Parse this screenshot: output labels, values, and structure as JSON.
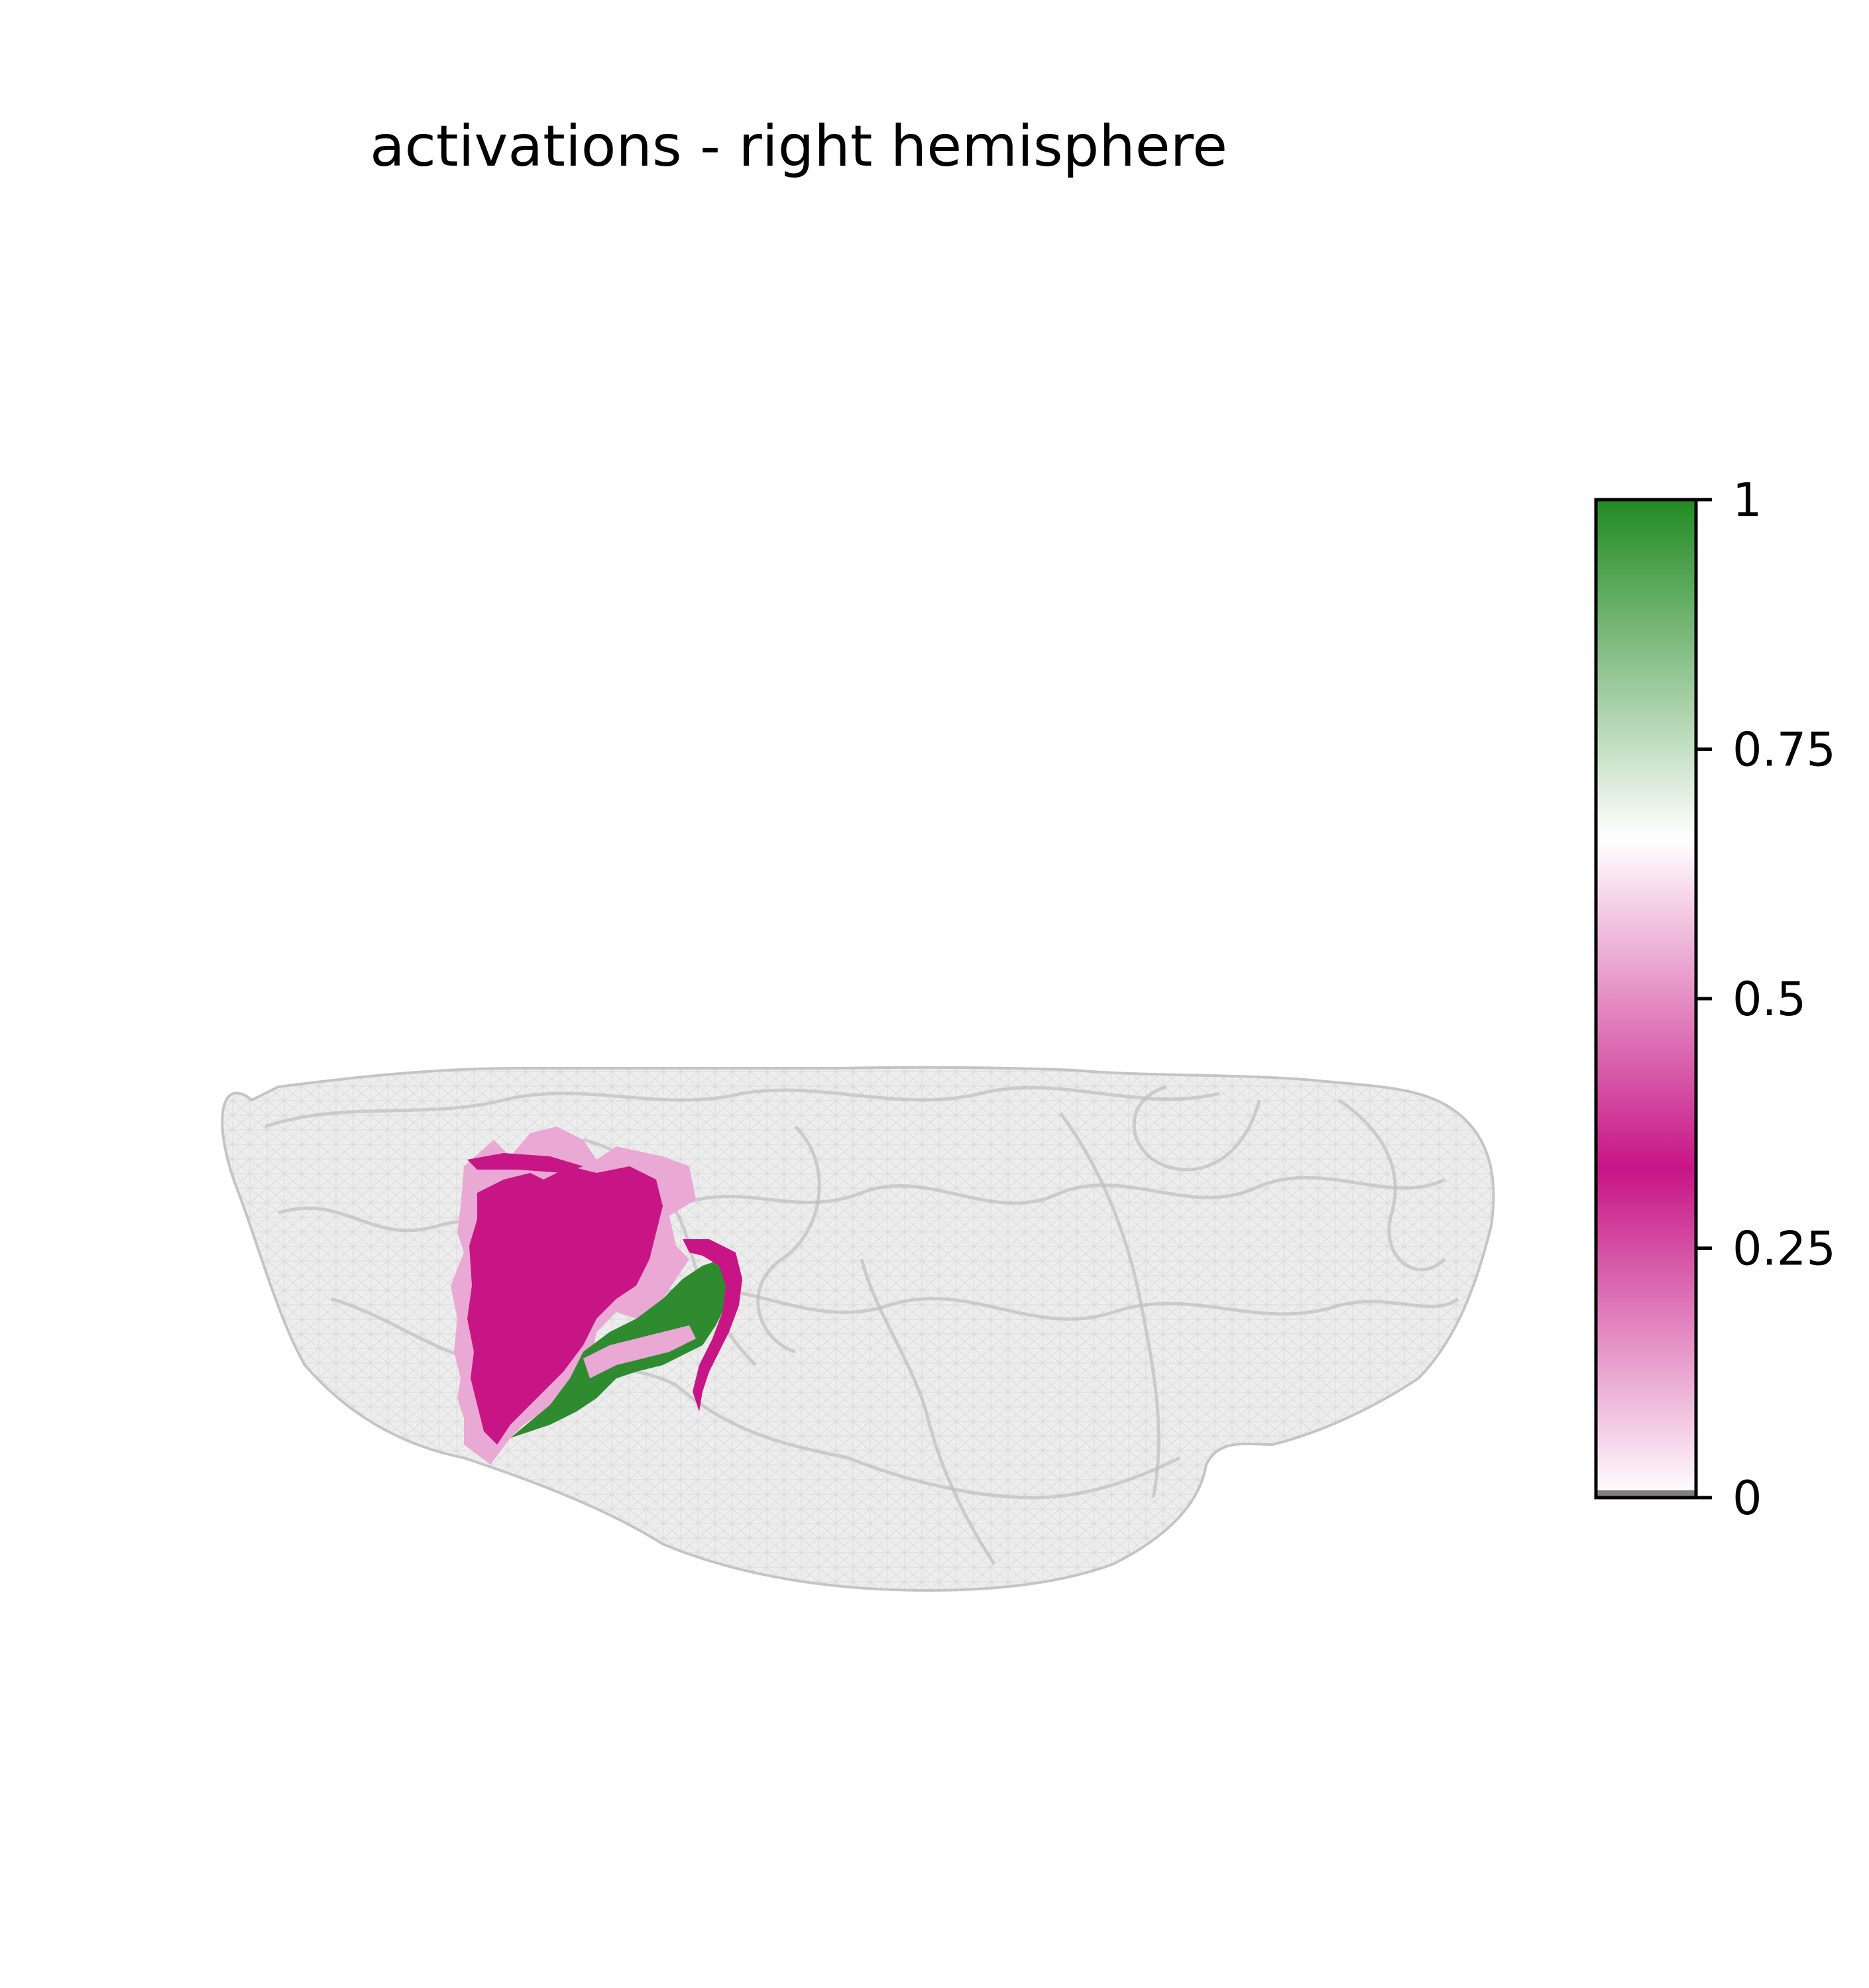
{
  "title": "activations - right hemisphere",
  "colorbar": {
    "min": 0,
    "max": 1,
    "ticks": [
      {
        "value": 0,
        "label": "0"
      },
      {
        "value": 0.25,
        "label": "0.25"
      },
      {
        "value": 0.5,
        "label": "0.5"
      },
      {
        "value": 0.75,
        "label": "0.75"
      },
      {
        "value": 1,
        "label": "1"
      }
    ],
    "colormap": [
      {
        "value": 0.0,
        "color": "#ffffff"
      },
      {
        "value": 0.33,
        "color": "#c71585"
      },
      {
        "value": 0.66,
        "color": "#ffffff"
      },
      {
        "value": 1.0,
        "color": "#228b22"
      }
    ],
    "below_threshold_color": "#808080"
  },
  "colors": {
    "surface": "#d3d3d3",
    "surface_edge": "#bdbdbd",
    "activation_magenta": "#c71585",
    "activation_light_pink": "#eaa8d5",
    "activation_green": "#2e8b30"
  }
}
